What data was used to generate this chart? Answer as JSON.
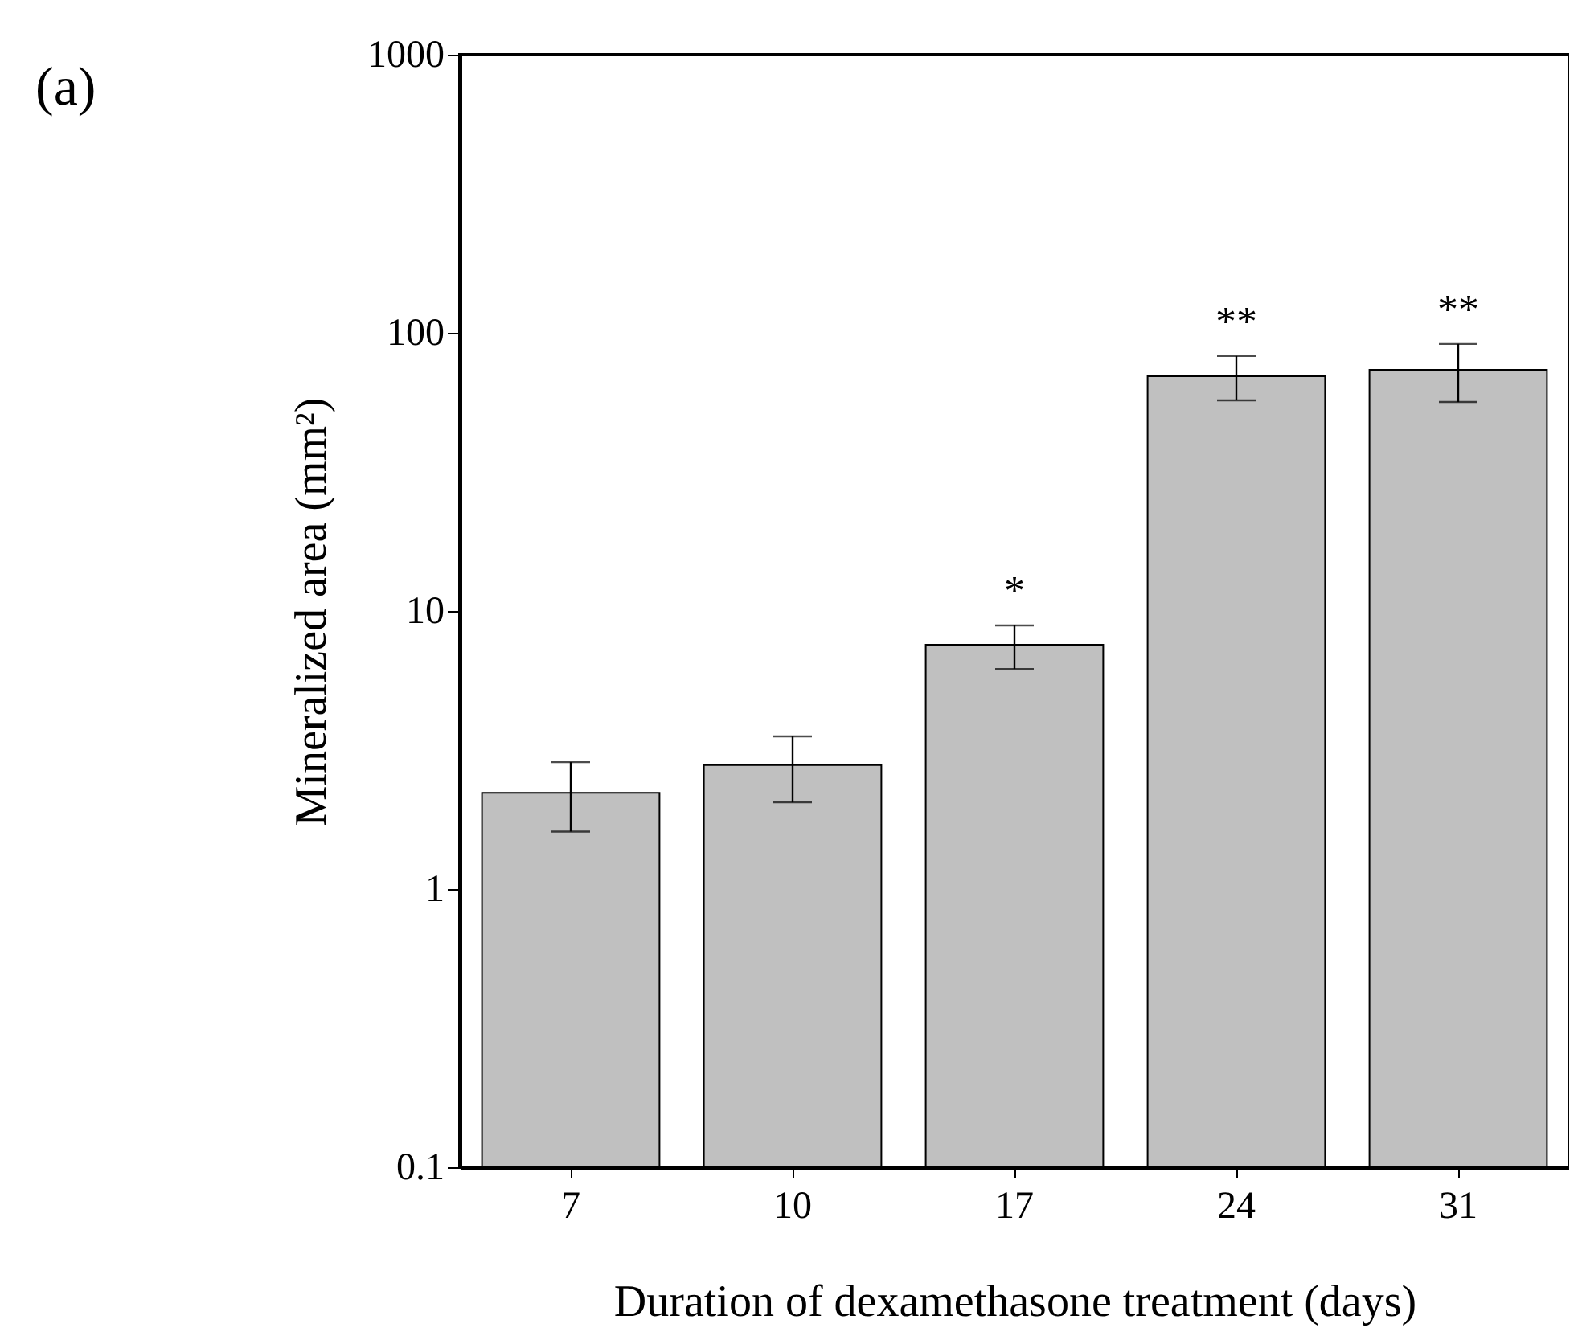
{
  "chart_data": {
    "type": "bar",
    "xlabel": "Duration of dexamethasone treatment (days)",
    "ylabel": "Mineralized area (mm²)",
    "categories": [
      "7",
      "10",
      "17",
      "24",
      "31"
    ],
    "values": [
      2.22,
      2.79,
      7.56,
      69.8,
      73.6
    ],
    "errors": [
      [
        1.61,
        2.86
      ],
      [
        2.05,
        3.54
      ],
      [
        6.19,
        8.87
      ],
      [
        57.2,
        82.5
      ],
      [
        56.4,
        91.2
      ]
    ],
    "color": "#c0c0c0",
    "log": true,
    "ylim": [
      0.1,
      1000
    ],
    "yticks": [
      0.1,
      1,
      10,
      100,
      1000
    ],
    "grid": false,
    "annotations": [
      "(a)",
      {
        "text": "*",
        "x": "17",
        "y": 8.87
      },
      {
        "text": "**",
        "x": "24",
        "y": 82.5
      },
      {
        "text": "**",
        "x": "31",
        "y": 91.2
      }
    ]
  }
}
